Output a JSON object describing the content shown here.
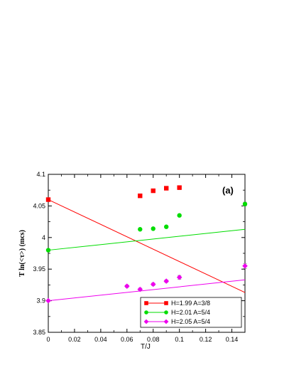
{
  "chart_data": {
    "type": "scatter",
    "title": "",
    "xlabel": "T/J",
    "ylabel": "T ln(<τ>)    (mcs)",
    "xlim": [
      0,
      0.15
    ],
    "ylim": [
      3.85,
      4.1
    ],
    "xticks": [
      0,
      0.02,
      0.04,
      0.06,
      0.08,
      0.1,
      0.12,
      0.14
    ],
    "xtick_labels": [
      "0",
      "0.02",
      "0.04",
      "0.06",
      "0.08",
      "0.1",
      "0.12",
      "0.14"
    ],
    "yticks": [
      3.85,
      3.9,
      3.95,
      4.0,
      4.05,
      4.1
    ],
    "ytick_labels": [
      "3.85",
      "3.9",
      "3.95",
      "4",
      "4.05",
      "4.1"
    ],
    "annotation": "(a)",
    "grid": false,
    "legend_position": "bottom-right",
    "series": [
      {
        "name": "H=1.99 A=3/8",
        "color": "#ff0000",
        "marker": "square",
        "points": [
          {
            "x": 0.07,
            "y": 4.066,
            "err": 0.002
          },
          {
            "x": 0.08,
            "y": 4.074,
            "err": 0.002
          },
          {
            "x": 0.09,
            "y": 4.078,
            "err": 0.002
          },
          {
            "x": 0.1,
            "y": 4.079,
            "err": 0.003
          }
        ],
        "fit_line": {
          "x": [
            0,
            0.15
          ],
          "y": [
            4.06,
            3.913
          ]
        },
        "fit_marker": {
          "x": 0,
          "y": 4.06
        }
      },
      {
        "name": "H=2.01 A=5/4",
        "color": "#00dd00",
        "marker": "circle",
        "points": [
          {
            "x": 0.07,
            "y": 4.013,
            "err": 0.001
          },
          {
            "x": 0.08,
            "y": 4.014,
            "err": 0.001
          },
          {
            "x": 0.09,
            "y": 4.017,
            "err": 0.001
          },
          {
            "x": 0.1,
            "y": 4.035,
            "err": 0.002
          },
          {
            "x": 0.15,
            "y": 4.053,
            "err": 0.003
          }
        ],
        "fit_line": {
          "x": [
            0,
            0.15
          ],
          "y": [
            3.98,
            4.013
          ]
        },
        "fit_marker": {
          "x": 0,
          "y": 3.98
        }
      },
      {
        "name": "H=2.05 A=5/4",
        "color": "#ee00ee",
        "marker": "diamond",
        "points": [
          {
            "x": 0.06,
            "y": 3.923,
            "err": 0.002
          },
          {
            "x": 0.07,
            "y": 3.918,
            "err": 0.002
          },
          {
            "x": 0.08,
            "y": 3.926,
            "err": 0.002
          },
          {
            "x": 0.09,
            "y": 3.931,
            "err": 0.002
          },
          {
            "x": 0.1,
            "y": 3.937,
            "err": 0.003
          },
          {
            "x": 0.15,
            "y": 3.955,
            "err": 0.004
          }
        ],
        "fit_line": {
          "x": [
            0,
            0.15
          ],
          "y": [
            3.9,
            3.933
          ]
        },
        "fit_marker": {
          "x": 0,
          "y": 3.9
        }
      }
    ]
  }
}
